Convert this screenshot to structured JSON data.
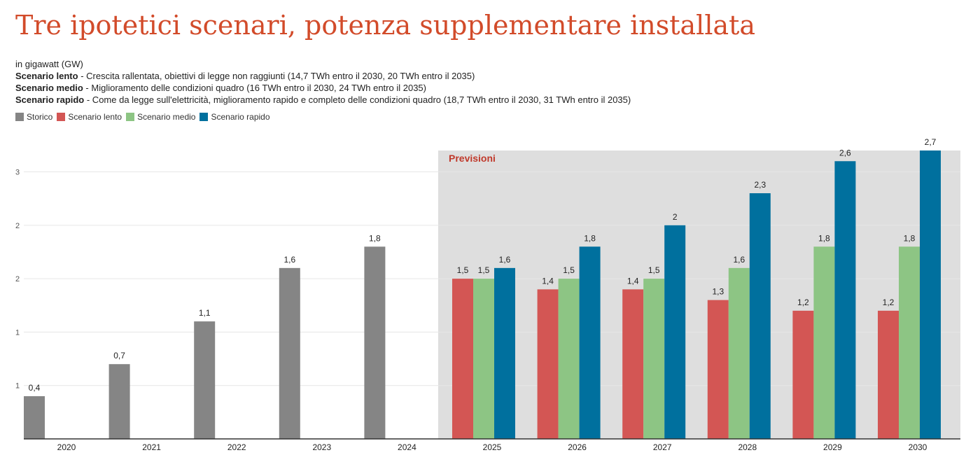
{
  "header": {
    "title": "Tre ipotetici scenari, potenza supplementare installata",
    "unit": "in gigawatt (GW)",
    "scenarios": [
      {
        "name": "Scenario lento",
        "desc": " - Crescita rallentata, obiettivi di legge non raggiunti (14,7 TWh entro il 2030, 20 TWh entro il 2035)"
      },
      {
        "name": "Scenario medio",
        "desc": " - Miglioramento delle condizioni quadro (16 TWh entro il 2030, 24 TWh entro il 2035)"
      },
      {
        "name": "Scenario rapido",
        "desc": " - Come da legge sull'elettricità, miglioramento rapido e completo delle condizioni quadro (18,7 TWh entro il 2030, 31 TWh entro il 2035)"
      }
    ]
  },
  "colors": {
    "storico": "#858585",
    "lento": "#d35654",
    "medio": "#8dc584",
    "rapido": "#00709e",
    "forecast_bg": "#dedede",
    "forecast_label": "#c0392b",
    "grid": "#e6e6e6",
    "axis": "#333333"
  },
  "legend": [
    {
      "label": "Storico",
      "color": "#858585"
    },
    {
      "label": "Scenario lento",
      "color": "#d35654"
    },
    {
      "label": "Scenario medio",
      "color": "#8dc584"
    },
    {
      "label": "Scenario rapido",
      "color": "#00709e"
    }
  ],
  "chart_data": {
    "type": "bar",
    "categories": [
      "2020",
      "2021",
      "2022",
      "2023",
      "2024",
      "2025",
      "2026",
      "2027",
      "2028",
      "2029",
      "2030"
    ],
    "series": [
      {
        "name": "Storico",
        "key": "storico",
        "values": [
          0.4,
          0.7,
          1.1,
          1.6,
          1.8,
          null,
          null,
          null,
          null,
          null,
          null
        ],
        "labels": [
          "0,4",
          "0,7",
          "1,1",
          "1,6",
          "1,8",
          "",
          "",
          "",
          "",
          "",
          ""
        ]
      },
      {
        "name": "Scenario lento",
        "key": "lento",
        "values": [
          null,
          null,
          null,
          null,
          null,
          1.5,
          1.4,
          1.4,
          1.3,
          1.2,
          1.2
        ],
        "labels": [
          "",
          "",
          "",
          "",
          "",
          "1,5",
          "1,4",
          "1,4",
          "1,3",
          "1,2",
          "1,2"
        ]
      },
      {
        "name": "Scenario medio",
        "key": "medio",
        "values": [
          null,
          null,
          null,
          null,
          null,
          1.5,
          1.5,
          1.5,
          1.6,
          1.8,
          1.8
        ],
        "labels": [
          "",
          "",
          "",
          "",
          "",
          "1,5",
          "1,5",
          "1,5",
          "1,6",
          "1,8",
          "1,8"
        ]
      },
      {
        "name": "Scenario rapido",
        "key": "rapido",
        "values": [
          null,
          null,
          null,
          null,
          null,
          1.6,
          1.8,
          2,
          2.3,
          2.6,
          2.7
        ],
        "labels": [
          "",
          "",
          "",
          "",
          "",
          "1,6",
          "1,8",
          "2",
          "2,3",
          "2,6",
          "2,7"
        ]
      }
    ],
    "y_ticks": [
      0.5,
      1.0,
      1.5,
      2.0,
      2.5
    ],
    "y_tick_labels": [
      "1",
      "1",
      "2",
      "2",
      "3"
    ],
    "ylim": [
      0,
      2.7
    ],
    "forecast_start_index": 5,
    "forecast_label": "Previsioni",
    "xlabel": "",
    "ylabel": ""
  }
}
